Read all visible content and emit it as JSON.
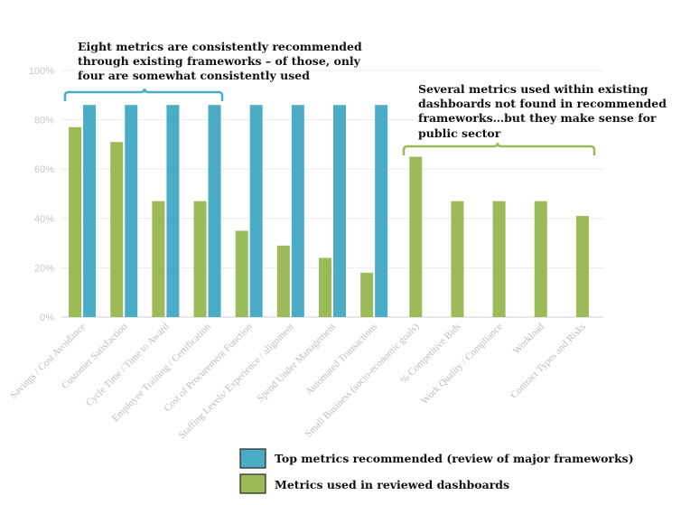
{
  "chart_data": {
    "type": "bar",
    "categories": [
      "Savings / Cost Avoidance",
      "Customer Satisfaction",
      "Cycle Time / Time to Award",
      "Employee Training / Certification",
      "Cost of Procurement Function",
      "Staffing Levels/ Experience / alignment",
      "Spend Under Management",
      "Automated Transactions",
      "Small Business (socio-economic goals)",
      "% Competitive Bids",
      "Work Quality / Compliance",
      "Workload",
      "Contract Types and Risks"
    ],
    "series": [
      {
        "name": "Metrics used in reviewed dashboards",
        "color": "#9bbb59",
        "values": [
          77,
          71,
          47,
          47,
          35,
          29,
          24,
          18,
          65,
          47,
          47,
          47,
          41
        ]
      },
      {
        "name": "Top metrics recommended (review of major frameworks)",
        "color": "#4bacc6",
        "values": [
          86,
          86,
          86,
          86,
          86,
          86,
          86,
          86,
          null,
          null,
          null,
          null,
          null
        ]
      }
    ],
    "ylim": [
      0,
      100
    ],
    "yticks": [
      "0%",
      "20%",
      "40%",
      "60%",
      "80%",
      "100%"
    ],
    "grid": true,
    "legend_position": "bottom-right",
    "annotations": [
      {
        "id": "left-callout",
        "lines": [
          "Eight metrics are consistently recommended",
          "through existing frameworks – of those, only",
          "four are somewhat consistently used"
        ],
        "bracket_color": "#4bacc6"
      },
      {
        "id": "right-callout",
        "lines": [
          "Several metrics used within existing",
          "dashboards not found in recommended",
          "frameworks…but they make sense for",
          "public sector"
        ],
        "bracket_color": "#9bbb59"
      }
    ]
  }
}
